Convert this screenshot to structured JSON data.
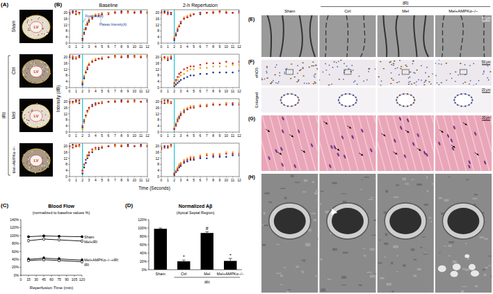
{
  "figure": {
    "panel_labels": [
      "(A)",
      "(B)",
      "(C)",
      "(D)",
      "(E)",
      "(F)",
      "(G)",
      "(H)"
    ],
    "panel_a": {
      "rows": [
        "Sham",
        "Ctrl",
        "Mel",
        "Mel+AMPKα−/−"
      ],
      "group": "IRI",
      "image_label": "LV"
    },
    "panel_b": {
      "columns": [
        "Baseline",
        "2-h Reperfusion"
      ],
      "y_label": "Intensity (dB)",
      "x_label": "Time (Seconds)"
    },
    "panels_e_h": {
      "group_header": "IRI",
      "columns": [
        "Sham",
        "Ctrl",
        "Mel",
        "Mel+AMPKα−/−"
      ],
      "f_rows": [
        "eNOS",
        "Enlarged"
      ],
      "scale_bars": {
        "e": "50 μm",
        "f": "50 μm",
        "f_enlarged": "20 μm",
        "g": "20 μm"
      }
    }
  },
  "chart_data": [
    {
      "type": "scatter",
      "x": [
        0,
        0.5,
        1,
        1.5,
        2,
        2.25,
        2.5,
        2.75,
        3,
        3.5,
        4,
        4.5,
        5,
        6,
        7,
        8,
        9,
        10,
        11,
        12
      ],
      "xlim": [
        0,
        12
      ],
      "xticks": [
        0,
        1,
        2,
        3,
        4,
        5,
        6,
        7,
        8,
        9,
        10,
        11,
        12
      ],
      "ylim": [
        0,
        22
      ],
      "yticks": [
        0,
        4,
        8,
        12,
        16,
        20
      ],
      "reference_x": 2,
      "annotations": [
        "Flow Velocity",
        "Plateau Intensity(A)"
      ],
      "series": [
        {
          "color": "#27348b",
          "values": [
            20,
            21,
            19,
            20,
            3,
            7,
            10,
            13,
            15,
            17,
            18,
            19,
            19,
            20,
            20,
            21,
            20,
            20,
            21,
            20
          ]
        },
        {
          "color": "#f2a51a",
          "values": [
            21,
            20,
            20,
            19,
            5,
            9,
            12,
            14,
            16,
            18,
            19,
            19,
            20,
            20,
            21,
            20,
            20,
            21,
            20,
            21
          ]
        },
        {
          "color": "#d7261e",
          "values": [
            19,
            20,
            21,
            20,
            2,
            6,
            9,
            12,
            14,
            16,
            18,
            18,
            19,
            19,
            20,
            20,
            21,
            20,
            20,
            20
          ]
        }
      ]
    },
    {
      "type": "scatter",
      "x": [
        0,
        0.5,
        1,
        1.5,
        2,
        2.25,
        2.5,
        2.75,
        3,
        3.5,
        4,
        4.5,
        5,
        6,
        7,
        8,
        9,
        10,
        11,
        12
      ],
      "xlim": [
        0,
        12
      ],
      "xticks": [
        0,
        1,
        2,
        3,
        4,
        5,
        6,
        7,
        8,
        9,
        10,
        11,
        12
      ],
      "ylim": [
        0,
        22
      ],
      "yticks": [
        0,
        4,
        8,
        12,
        16,
        20
      ],
      "reference_x": 2,
      "series": [
        {
          "color": "#27348b",
          "values": [
            20,
            21,
            20,
            19,
            2,
            5,
            8,
            11,
            13,
            16,
            17,
            18,
            19,
            19,
            20,
            20,
            21,
            20,
            20,
            21
          ]
        },
        {
          "color": "#f2a51a",
          "values": [
            19,
            20,
            21,
            20,
            4,
            7,
            10,
            12,
            14,
            17,
            18,
            19,
            19,
            20,
            20,
            21,
            20,
            21,
            20,
            20
          ]
        },
        {
          "color": "#d7261e",
          "values": [
            21,
            20,
            19,
            20,
            3,
            6,
            9,
            11,
            14,
            16,
            17,
            18,
            19,
            20,
            20,
            20,
            21,
            20,
            20,
            20
          ]
        }
      ]
    },
    {
      "type": "scatter",
      "x": [
        0,
        0.5,
        1,
        1.5,
        2,
        2.25,
        2.5,
        2.75,
        3,
        3.5,
        4,
        4.5,
        5,
        6,
        7,
        8,
        9,
        10,
        11,
        12
      ],
      "xlim": [
        0,
        12
      ],
      "xticks": [
        0,
        1,
        2,
        3,
        4,
        5,
        6,
        7,
        8,
        9,
        10,
        11,
        12
      ],
      "ylim": [
        0,
        22
      ],
      "yticks": [
        0,
        4,
        8,
        12,
        16,
        20
      ],
      "reference_x": 2,
      "series": [
        {
          "color": "#27348b",
          "values": [
            20,
            19,
            20,
            21,
            2,
            6,
            10,
            12,
            15,
            17,
            18,
            19,
            19,
            20,
            20,
            20,
            21,
            20,
            20,
            20
          ]
        },
        {
          "color": "#f2a51a",
          "values": [
            19,
            21,
            20,
            20,
            4,
            8,
            11,
            14,
            16,
            18,
            19,
            19,
            20,
            20,
            20,
            21,
            20,
            20,
            21,
            20
          ]
        },
        {
          "color": "#d7261e",
          "values": [
            21,
            20,
            19,
            20,
            3,
            7,
            10,
            13,
            15,
            17,
            18,
            19,
            19,
            20,
            21,
            20,
            20,
            21,
            20,
            21
          ]
        }
      ]
    },
    {
      "type": "scatter",
      "x": [
        0,
        0.5,
        1,
        1.5,
        2,
        2.25,
        2.5,
        2.75,
        3,
        3.5,
        4,
        4.5,
        5,
        6,
        7,
        8,
        9,
        10,
        11,
        12
      ],
      "xlim": [
        0,
        12
      ],
      "xticks": [
        0,
        1,
        2,
        3,
        4,
        5,
        6,
        7,
        8,
        9,
        10,
        11,
        12
      ],
      "ylim": [
        0,
        22
      ],
      "yticks": [
        0,
        4,
        8,
        12,
        16,
        20
      ],
      "reference_x": 2,
      "series": [
        {
          "color": "#27348b",
          "values": [
            19,
            20,
            18,
            19,
            1,
            2,
            3,
            4,
            5,
            6,
            7,
            8,
            8,
            9,
            9,
            10,
            10,
            10,
            10,
            11
          ]
        },
        {
          "color": "#f2a51a",
          "values": [
            20,
            19,
            20,
            21,
            2,
            4,
            5,
            7,
            8,
            9,
            11,
            12,
            12,
            13,
            13,
            14,
            14,
            14,
            15,
            15
          ]
        },
        {
          "color": "#d7261e",
          "values": [
            18,
            20,
            19,
            20,
            3,
            5,
            7,
            9,
            10,
            12,
            13,
            14,
            14,
            15,
            16,
            16,
            16,
            17,
            16,
            17
          ]
        }
      ]
    },
    {
      "type": "scatter",
      "x": [
        0,
        0.5,
        1,
        1.5,
        2,
        2.25,
        2.5,
        2.75,
        3,
        3.5,
        4,
        4.5,
        5,
        6,
        7,
        8,
        9,
        10,
        11,
        12
      ],
      "xlim": [
        0,
        12
      ],
      "xticks": [
        0,
        1,
        2,
        3,
        4,
        5,
        6,
        7,
        8,
        9,
        10,
        11,
        12
      ],
      "ylim": [
        0,
        22
      ],
      "yticks": [
        0,
        4,
        8,
        12,
        16,
        20
      ],
      "reference_x": 2,
      "series": [
        {
          "color": "#27348b",
          "values": [
            20,
            20,
            21,
            19,
            3,
            7,
            11,
            14,
            16,
            18,
            19,
            19,
            20,
            20,
            20,
            21,
            20,
            20,
            20,
            21
          ]
        },
        {
          "color": "#f2a51a",
          "values": [
            21,
            19,
            20,
            20,
            2,
            6,
            10,
            13,
            15,
            17,
            18,
            19,
            20,
            20,
            21,
            20,
            21,
            20,
            20,
            20
          ]
        },
        {
          "color": "#d7261e",
          "values": [
            19,
            20,
            20,
            21,
            4,
            8,
            11,
            14,
            16,
            17,
            18,
            19,
            19,
            20,
            20,
            20,
            20,
            21,
            20,
            20
          ]
        }
      ]
    },
    {
      "type": "scatter",
      "x": [
        0,
        0.5,
        1,
        1.5,
        2,
        2.25,
        2.5,
        2.75,
        3,
        3.5,
        4,
        4.5,
        5,
        6,
        7,
        8,
        9,
        10,
        11,
        12
      ],
      "xlim": [
        0,
        12
      ],
      "xticks": [
        0,
        1,
        2,
        3,
        4,
        5,
        6,
        7,
        8,
        9,
        10,
        11,
        12
      ],
      "ylim": [
        0,
        22
      ],
      "yticks": [
        0,
        4,
        8,
        12,
        16,
        20
      ],
      "reference_x": 2,
      "series": [
        {
          "color": "#27348b",
          "values": [
            20,
            19,
            21,
            20,
            2,
            5,
            8,
            10,
            12,
            14,
            15,
            16,
            17,
            17,
            18,
            18,
            18,
            19,
            18,
            19
          ]
        },
        {
          "color": "#f2a51a",
          "values": [
            21,
            20,
            19,
            20,
            3,
            6,
            9,
            11,
            13,
            15,
            16,
            17,
            17,
            18,
            18,
            19,
            18,
            19,
            19,
            19
          ]
        },
        {
          "color": "#d7261e",
          "values": [
            19,
            21,
            20,
            19,
            2,
            4,
            7,
            9,
            11,
            13,
            15,
            16,
            16,
            17,
            17,
            18,
            18,
            18,
            19,
            18
          ]
        }
      ]
    },
    {
      "type": "scatter",
      "x": [
        0,
        0.5,
        1,
        1.5,
        2,
        2.25,
        2.5,
        2.75,
        3,
        3.5,
        4,
        4.5,
        5,
        6,
        7,
        8,
        9,
        10,
        11,
        12
      ],
      "xlim": [
        0,
        12
      ],
      "xticks": [
        0,
        1,
        2,
        3,
        4,
        5,
        6,
        7,
        8,
        9,
        10,
        11,
        12
      ],
      "ylim": [
        0,
        22
      ],
      "yticks": [
        0,
        4,
        8,
        12,
        16,
        20
      ],
      "reference_x": 2,
      "series": [
        {
          "color": "#27348b",
          "values": [
            20,
            21,
            20,
            20,
            2,
            6,
            9,
            12,
            14,
            16,
            18,
            18,
            19,
            20,
            20,
            20,
            21,
            20,
            21,
            20
          ]
        },
        {
          "color": "#f2a51a",
          "values": [
            19,
            20,
            21,
            20,
            3,
            7,
            11,
            13,
            15,
            17,
            18,
            19,
            20,
            20,
            20,
            21,
            20,
            20,
            20,
            21
          ]
        },
        {
          "color": "#d7261e",
          "values": [
            20,
            19,
            20,
            21,
            4,
            8,
            11,
            14,
            16,
            18,
            19,
            19,
            19,
            20,
            21,
            20,
            20,
            20,
            20,
            20
          ]
        }
      ]
    },
    {
      "type": "scatter",
      "x": [
        0,
        0.5,
        1,
        1.5,
        2,
        2.25,
        2.5,
        2.75,
        3,
        3.5,
        4,
        4.5,
        5,
        6,
        7,
        8,
        9,
        10,
        11,
        12
      ],
      "xlim": [
        0,
        12
      ],
      "xticks": [
        0,
        1,
        2,
        3,
        4,
        5,
        6,
        7,
        8,
        9,
        10,
        11,
        12
      ],
      "ylim": [
        0,
        22
      ],
      "yticks": [
        0,
        4,
        8,
        12,
        16,
        20
      ],
      "reference_x": 2,
      "series": [
        {
          "color": "#27348b",
          "values": [
            19,
            20,
            19,
            20,
            1,
            3,
            4,
            6,
            7,
            9,
            10,
            11,
            11,
            12,
            12,
            13,
            13,
            13,
            14,
            14
          ]
        },
        {
          "color": "#f2a51a",
          "values": [
            20,
            19,
            20,
            20,
            2,
            4,
            6,
            8,
            9,
            11,
            12,
            13,
            13,
            14,
            15,
            15,
            15,
            16,
            16,
            16
          ]
        },
        {
          "color": "#d7261e",
          "values": [
            18,
            19,
            20,
            21,
            2,
            3,
            5,
            7,
            8,
            10,
            11,
            12,
            12,
            13,
            14,
            14,
            14,
            15,
            15,
            15
          ]
        }
      ]
    },
    {
      "type": "line",
      "title": "Blood Flow",
      "subtitle": "(normalized to baseline values %)",
      "x_label": "Reperfusion Time (min)",
      "x": [
        15,
        45,
        75,
        120
      ],
      "xlim": [
        0,
        120
      ],
      "xticks": [
        0,
        15,
        30,
        45,
        60,
        75,
        90,
        105,
        120
      ],
      "ylim": [
        0,
        140
      ],
      "yticks": [
        {
          "value": 0,
          "label": "0%"
        },
        {
          "value": 20,
          "label": "20%"
        },
        {
          "value": 40,
          "label": "40%"
        },
        {
          "value": 60,
          "label": "60%"
        },
        {
          "value": 80,
          "label": "80%"
        },
        {
          "value": 100,
          "label": "100%"
        },
        {
          "value": 120,
          "label": "120%"
        },
        {
          "value": 140,
          "label": "140%"
        }
      ],
      "marker": "circle",
      "series": [
        {
          "name": "Sham",
          "color": "#000000",
          "values": [
            97,
            99,
            98,
            97
          ],
          "errors": [
            2,
            2,
            2,
            2
          ]
        },
        {
          "name": "Mel+IRI",
          "color": "#000000",
          "values": [
            87,
            91,
            89,
            86
          ],
          "errors": [
            3,
            3,
            3,
            3
          ]
        },
        {
          "name": "Mel+AMPKα−/−+IRI",
          "color": "#000000",
          "values": [
            40,
            43,
            41,
            38
          ],
          "errors": [
            4,
            4,
            4,
            4
          ]
        },
        {
          "name": "IRI",
          "color": "#000000",
          "values": [
            37,
            39,
            37,
            34
          ],
          "errors": [
            3,
            3,
            3,
            3
          ]
        }
      ]
    },
    {
      "type": "bar",
      "title": "Normalized Aβ",
      "subtitle": "(Apical Septal Region)",
      "categories": [
        "Sham",
        "Ctrl",
        "Mel",
        "Mel+AMPKα−/−"
      ],
      "group_label": "IRI",
      "values": [
        98,
        20,
        88,
        21
      ],
      "errors": [
        2,
        3,
        3,
        6
      ],
      "significance": [
        null,
        "*",
        "#",
        "*"
      ],
      "color": "#000000",
      "ylim": [
        0,
        120
      ],
      "yticks": [
        {
          "value": 0,
          "label": "0%"
        },
        {
          "value": 20,
          "label": "20%"
        },
        {
          "value": 40,
          "label": "40%"
        },
        {
          "value": 60,
          "label": "60%"
        },
        {
          "value": 80,
          "label": "80%"
        },
        {
          "value": 100,
          "label": "100%"
        },
        {
          "value": 120,
          "label": "120%"
        }
      ]
    }
  ]
}
